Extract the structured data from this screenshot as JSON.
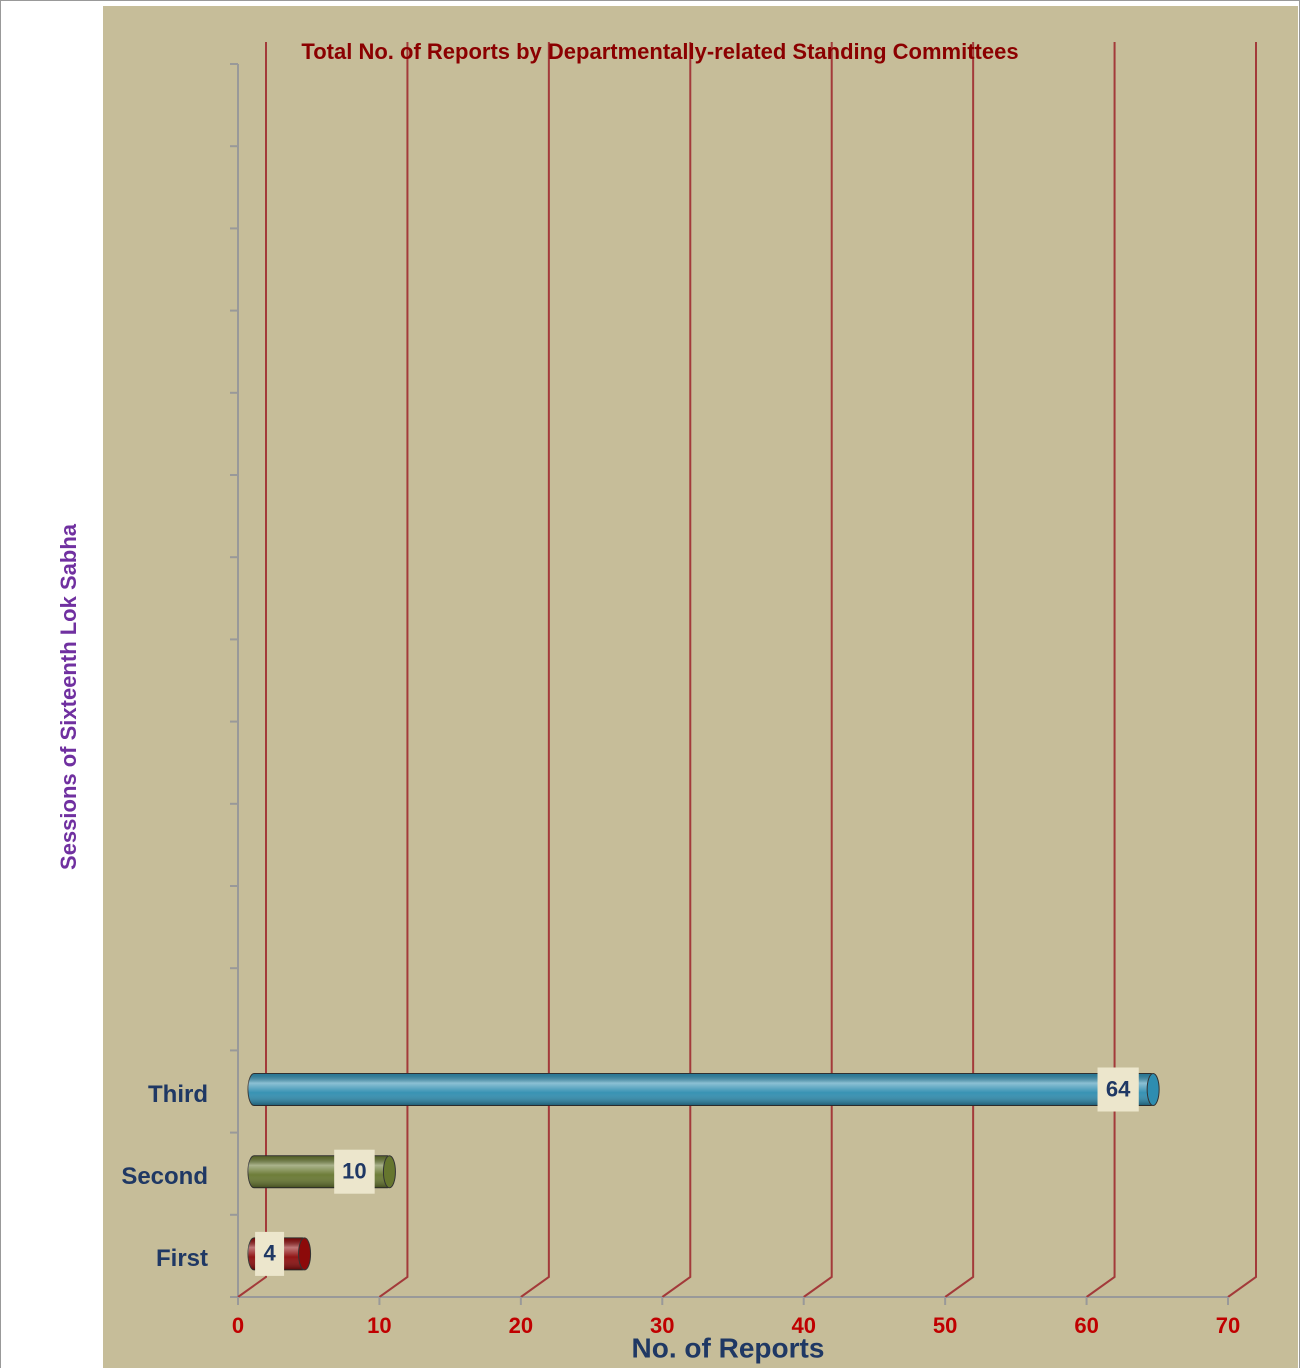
{
  "chart_data": {
    "type": "hbar3d",
    "title": "Total No. of Reports by Departmentally-related Standing Committees",
    "x_label": "No. of Reports",
    "y_label": "Sessions of Sixteenth Lok Sabha",
    "categories": [
      "First",
      "Second",
      "Third",
      null,
      null,
      null,
      null,
      null,
      null,
      null,
      null,
      null,
      null,
      null,
      null
    ],
    "values": [
      4,
      10,
      64,
      null,
      null,
      null,
      null,
      null,
      null,
      null,
      null,
      null,
      null,
      null,
      null
    ],
    "colors": [
      "#8c0a0a",
      "#66762e",
      "#2e8db0"
    ],
    "xlim": [
      0,
      70
    ],
    "xticks": [
      0,
      10,
      20,
      30,
      40,
      50,
      60,
      70
    ],
    "grid": true
  }
}
